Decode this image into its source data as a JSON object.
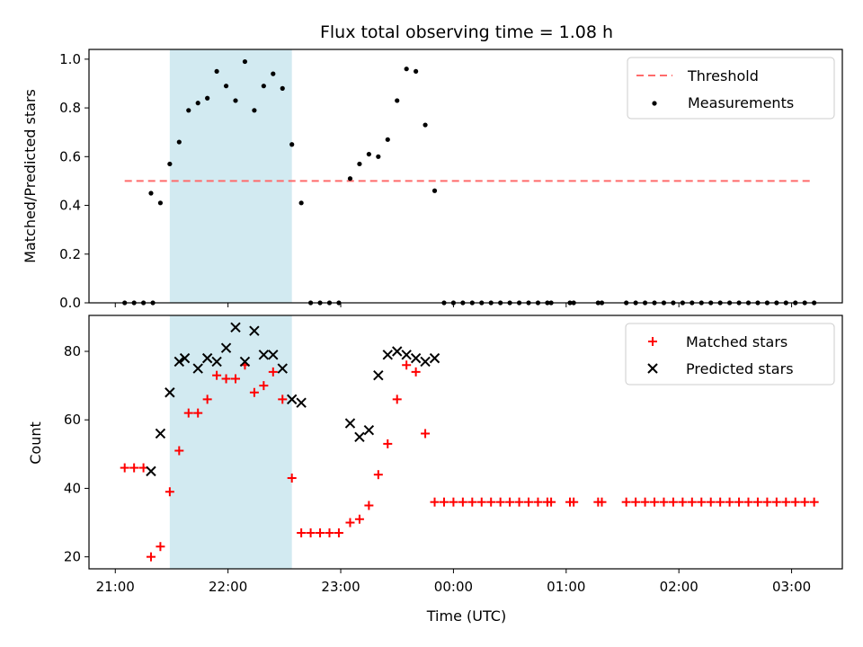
{
  "chart_data": [
    {
      "type": "scatter",
      "title": "Flux total observing time = 1.08 h",
      "xlabel": "",
      "ylabel": "Matched/Predicted stars",
      "ylim": [
        0,
        1.04
      ],
      "yticks": [
        0.0,
        0.2,
        0.4,
        0.6,
        0.8,
        1.0
      ],
      "ytick_labels": [
        "0.0",
        "0.2",
        "0.4",
        "0.6",
        "0.8",
        "1.0"
      ],
      "xlim": [
        "20:46",
        "03:27"
      ],
      "grid": false,
      "legend_position": "top-right",
      "shaded_region": {
        "x_start": "21:29",
        "x_end": "22:34",
        "color": "#add8e6"
      },
      "series": [
        {
          "name": "Threshold",
          "kind": "dashed-line",
          "color": "#ff6b6b",
          "x": [
            "21:05",
            "03:12"
          ],
          "y": [
            0.5,
            0.5
          ]
        },
        {
          "name": "Measurements",
          "kind": "scatter",
          "color": "#000000",
          "points": [
            [
              "21:05",
              0.0
            ],
            [
              "21:10",
              0.0
            ],
            [
              "21:15",
              0.0
            ],
            [
              "21:20",
              0.0
            ],
            [
              "21:19",
              0.45
            ],
            [
              "21:24",
              0.41
            ],
            [
              "21:29",
              0.57
            ],
            [
              "21:34",
              0.66
            ],
            [
              "21:39",
              0.79
            ],
            [
              "21:44",
              0.82
            ],
            [
              "21:49",
              0.84
            ],
            [
              "21:54",
              0.95
            ],
            [
              "21:59",
              0.89
            ],
            [
              "22:04",
              0.83
            ],
            [
              "22:09",
              0.99
            ],
            [
              "22:14",
              0.79
            ],
            [
              "22:19",
              0.89
            ],
            [
              "22:24",
              0.94
            ],
            [
              "22:29",
              0.88
            ],
            [
              "22:34",
              0.65
            ],
            [
              "22:39",
              0.41
            ],
            [
              "22:44",
              0.0
            ],
            [
              "22:49",
              0.0
            ],
            [
              "22:54",
              0.0
            ],
            [
              "22:59",
              0.0
            ],
            [
              "23:05",
              0.51
            ],
            [
              "23:10",
              0.57
            ],
            [
              "23:15",
              0.61
            ],
            [
              "23:20",
              0.6
            ],
            [
              "23:25",
              0.67
            ],
            [
              "23:30",
              0.83
            ],
            [
              "23:35",
              0.96
            ],
            [
              "23:40",
              0.95
            ],
            [
              "23:45",
              0.73
            ],
            [
              "23:50",
              0.46
            ],
            [
              "23:55",
              0.0
            ],
            [
              "00:00",
              0.0
            ],
            [
              "00:05",
              0.0
            ],
            [
              "00:10",
              0.0
            ],
            [
              "00:15",
              0.0
            ],
            [
              "00:20",
              0.0
            ],
            [
              "00:25",
              0.0
            ],
            [
              "00:30",
              0.0
            ],
            [
              "00:35",
              0.0
            ],
            [
              "00:40",
              0.0
            ],
            [
              "00:45",
              0.0
            ],
            [
              "00:50",
              0.0
            ],
            [
              "00:52",
              0.0
            ],
            [
              "01:02",
              0.0
            ],
            [
              "01:04",
              0.0
            ],
            [
              "01:17",
              0.0
            ],
            [
              "01:19",
              0.0
            ],
            [
              "01:32",
              0.0
            ],
            [
              "01:37",
              0.0
            ],
            [
              "01:42",
              0.0
            ],
            [
              "01:47",
              0.0
            ],
            [
              "01:52",
              0.0
            ],
            [
              "01:57",
              0.0
            ],
            [
              "02:02",
              0.0
            ],
            [
              "02:07",
              0.0
            ],
            [
              "02:12",
              0.0
            ],
            [
              "02:17",
              0.0
            ],
            [
              "02:22",
              0.0
            ],
            [
              "02:27",
              0.0
            ],
            [
              "02:32",
              0.0
            ],
            [
              "02:37",
              0.0
            ],
            [
              "02:42",
              0.0
            ],
            [
              "02:47",
              0.0
            ],
            [
              "02:52",
              0.0
            ],
            [
              "02:57",
              0.0
            ],
            [
              "03:02",
              0.0
            ],
            [
              "03:07",
              0.0
            ],
            [
              "03:12",
              0.0
            ]
          ]
        }
      ]
    },
    {
      "type": "scatter",
      "title": "",
      "xlabel": "Time (UTC)",
      "ylabel": "Count",
      "ylim": [
        16.5,
        90.5
      ],
      "yticks": [
        20,
        40,
        60,
        80
      ],
      "ytick_labels": [
        "20",
        "40",
        "60",
        "80"
      ],
      "xlim": [
        "20:46",
        "03:27"
      ],
      "xticks": [
        "21:00",
        "22:00",
        "23:00",
        "00:00",
        "01:00",
        "02:00",
        "03:00"
      ],
      "grid": false,
      "legend_position": "top-right",
      "shaded_region": {
        "x_start": "21:29",
        "x_end": "22:34",
        "color": "#add8e6"
      },
      "series": [
        {
          "name": "Matched stars",
          "marker": "plus",
          "color": "#ff0000",
          "points": [
            [
              "21:05",
              46
            ],
            [
              "21:10",
              46
            ],
            [
              "21:15",
              46
            ],
            [
              "21:19",
              20
            ],
            [
              "21:24",
              23
            ],
            [
              "21:29",
              39
            ],
            [
              "21:34",
              51
            ],
            [
              "21:39",
              62
            ],
            [
              "21:44",
              62
            ],
            [
              "21:49",
              66
            ],
            [
              "21:54",
              73
            ],
            [
              "21:59",
              72
            ],
            [
              "22:04",
              72
            ],
            [
              "22:09",
              76
            ],
            [
              "22:14",
              68
            ],
            [
              "22:19",
              70
            ],
            [
              "22:24",
              74
            ],
            [
              "22:29",
              66
            ],
            [
              "22:34",
              43
            ],
            [
              "22:39",
              27
            ],
            [
              "22:44",
              27
            ],
            [
              "22:49",
              27
            ],
            [
              "22:54",
              27
            ],
            [
              "22:59",
              27
            ],
            [
              "23:05",
              30
            ],
            [
              "23:10",
              31
            ],
            [
              "23:15",
              35
            ],
            [
              "23:20",
              44
            ],
            [
              "23:25",
              53
            ],
            [
              "23:30",
              66
            ],
            [
              "23:35",
              76
            ],
            [
              "23:40",
              74
            ],
            [
              "23:45",
              56
            ],
            [
              "23:50",
              36
            ],
            [
              "23:55",
              36
            ],
            [
              "00:00",
              36
            ],
            [
              "00:05",
              36
            ],
            [
              "00:10",
              36
            ],
            [
              "00:15",
              36
            ],
            [
              "00:20",
              36
            ],
            [
              "00:25",
              36
            ],
            [
              "00:30",
              36
            ],
            [
              "00:35",
              36
            ],
            [
              "00:40",
              36
            ],
            [
              "00:45",
              36
            ],
            [
              "00:50",
              36
            ],
            [
              "00:52",
              36
            ],
            [
              "01:02",
              36
            ],
            [
              "01:04",
              36
            ],
            [
              "01:17",
              36
            ],
            [
              "01:19",
              36
            ],
            [
              "01:32",
              36
            ],
            [
              "01:37",
              36
            ],
            [
              "01:42",
              36
            ],
            [
              "01:47",
              36
            ],
            [
              "01:52",
              36
            ],
            [
              "01:57",
              36
            ],
            [
              "02:02",
              36
            ],
            [
              "02:07",
              36
            ],
            [
              "02:12",
              36
            ],
            [
              "02:17",
              36
            ],
            [
              "02:22",
              36
            ],
            [
              "02:27",
              36
            ],
            [
              "02:32",
              36
            ],
            [
              "02:37",
              36
            ],
            [
              "02:42",
              36
            ],
            [
              "02:47",
              36
            ],
            [
              "02:52",
              36
            ],
            [
              "02:57",
              36
            ],
            [
              "03:02",
              36
            ],
            [
              "03:07",
              36
            ],
            [
              "03:12",
              36
            ]
          ]
        },
        {
          "name": "Predicted stars",
          "marker": "x",
          "color": "#000000",
          "points": [
            [
              "21:19",
              45
            ],
            [
              "21:24",
              56
            ],
            [
              "21:29",
              68
            ],
            [
              "21:34",
              77
            ],
            [
              "21:37",
              78
            ],
            [
              "21:44",
              75
            ],
            [
              "21:49",
              78
            ],
            [
              "21:54",
              77
            ],
            [
              "21:59",
              81
            ],
            [
              "22:04",
              87
            ],
            [
              "22:09",
              77
            ],
            [
              "22:14",
              86
            ],
            [
              "22:19",
              79
            ],
            [
              "22:24",
              79
            ],
            [
              "22:29",
              75
            ],
            [
              "22:34",
              66
            ],
            [
              "22:39",
              65
            ],
            [
              "23:05",
              59
            ],
            [
              "23:10",
              55
            ],
            [
              "23:15",
              57
            ],
            [
              "23:20",
              73
            ],
            [
              "23:25",
              79
            ],
            [
              "23:30",
              80
            ],
            [
              "23:35",
              79
            ],
            [
              "23:40",
              78
            ],
            [
              "23:45",
              77
            ],
            [
              "23:50",
              78
            ]
          ]
        }
      ]
    }
  ]
}
